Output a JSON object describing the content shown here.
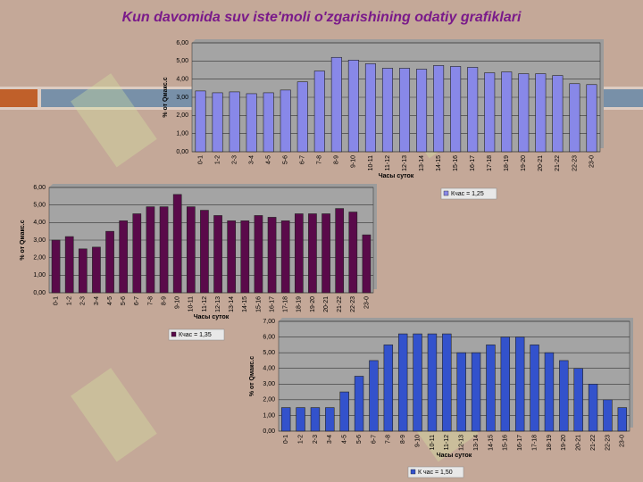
{
  "title": "Kun davomida suv iste'moli o'zgarishining odatiy grafiklari",
  "chart_data": [
    {
      "type": "bar",
      "xlabel": "Часы суток",
      "ylabel": "% от Qмакс.с",
      "legend": "Кчас = 1,25",
      "color": "#8888e8",
      "categories": [
        "0-1",
        "1-2",
        "2-3",
        "3-4",
        "4-5",
        "5-6",
        "6-7",
        "7-8",
        "8-9",
        "9-10",
        "10-11",
        "11-12",
        "12-13",
        "13-14",
        "14-15",
        "15-16",
        "16-17",
        "17-18",
        "18-19",
        "19-20",
        "20-21",
        "21-22",
        "22-23",
        "23-0"
      ],
      "values": [
        3.35,
        3.25,
        3.3,
        3.2,
        3.25,
        3.4,
        3.85,
        4.45,
        5.2,
        5.05,
        4.85,
        4.6,
        4.6,
        4.55,
        4.75,
        4.7,
        4.65,
        4.35,
        4.4,
        4.3,
        4.3,
        4.2,
        3.75,
        3.7
      ],
      "ylim": [
        0,
        6
      ],
      "yticks": [
        {
          "value": 0,
          "label": "0,00"
        },
        {
          "value": 1,
          "label": "1,00"
        },
        {
          "value": 2,
          "label": "2,00"
        },
        {
          "value": 3,
          "label": "3,00"
        },
        {
          "value": 4,
          "label": "4,00"
        },
        {
          "value": 5,
          "label": "5,00"
        },
        {
          "value": 6,
          "label": "6,00"
        }
      ],
      "grid": true
    },
    {
      "type": "bar",
      "xlabel": "Часы суток",
      "ylabel": "% от Qмакс.с",
      "legend": "Кчас = 1,35",
      "color": "#5a0a4a",
      "categories": [
        "0-1",
        "1-2",
        "2-3",
        "3-4",
        "4-5",
        "5-6",
        "6-7",
        "7-8",
        "8-9",
        "9-10",
        "10-11",
        "11-12",
        "12-13",
        "13-14",
        "14-15",
        "15-16",
        "16-17",
        "17-18",
        "18-19",
        "19-20",
        "20-21",
        "21-22",
        "22-23",
        "23-0"
      ],
      "values": [
        3.0,
        3.2,
        2.5,
        2.6,
        3.5,
        4.1,
        4.5,
        4.9,
        4.9,
        5.6,
        4.9,
        4.7,
        4.4,
        4.1,
        4.1,
        4.4,
        4.3,
        4.1,
        4.5,
        4.5,
        4.5,
        4.8,
        4.6,
        3.3
      ],
      "ylim": [
        0,
        6
      ],
      "yticks": [
        {
          "value": 0,
          "label": "0,00"
        },
        {
          "value": 1,
          "label": "1,00"
        },
        {
          "value": 2,
          "label": "2,00"
        },
        {
          "value": 3,
          "label": "3,00"
        },
        {
          "value": 4,
          "label": "4,00"
        },
        {
          "value": 5,
          "label": "5,00"
        },
        {
          "value": 6,
          "label": "6,00"
        }
      ],
      "grid": true
    },
    {
      "type": "bar",
      "xlabel": "Часы суток",
      "ylabel": "% от Qмакс.с",
      "legend": "К час = 1,50",
      "color": "#3352cc",
      "categories": [
        "0-1",
        "1-2",
        "2-3",
        "3-4",
        "4-5",
        "5-6",
        "6-7",
        "7-8",
        "8-9",
        "9-10",
        "10-11",
        "11-12",
        "12-13",
        "13-14",
        "14-15",
        "15-16",
        "16-17",
        "17-18",
        "18-19",
        "19-20",
        "20-21",
        "21-22",
        "22-23",
        "23-0"
      ],
      "values": [
        1.5,
        1.5,
        1.5,
        1.5,
        2.5,
        3.5,
        4.5,
        5.5,
        6.2,
        6.2,
        6.2,
        6.2,
        5.0,
        5.0,
        5.5,
        6.0,
        6.0,
        5.5,
        5.0,
        4.5,
        4.0,
        3.0,
        2.0,
        1.5
      ],
      "ylim": [
        0,
        7
      ],
      "yticks": [
        {
          "value": 0,
          "label": "0,00"
        },
        {
          "value": 1,
          "label": "1,00"
        },
        {
          "value": 2,
          "label": "2,00"
        },
        {
          "value": 3,
          "label": "3,00"
        },
        {
          "value": 4,
          "label": "4,00"
        },
        {
          "value": 5,
          "label": "5,00"
        },
        {
          "value": 6,
          "label": "6,00"
        },
        {
          "value": 7,
          "label": "7,00"
        }
      ],
      "grid": true
    }
  ]
}
